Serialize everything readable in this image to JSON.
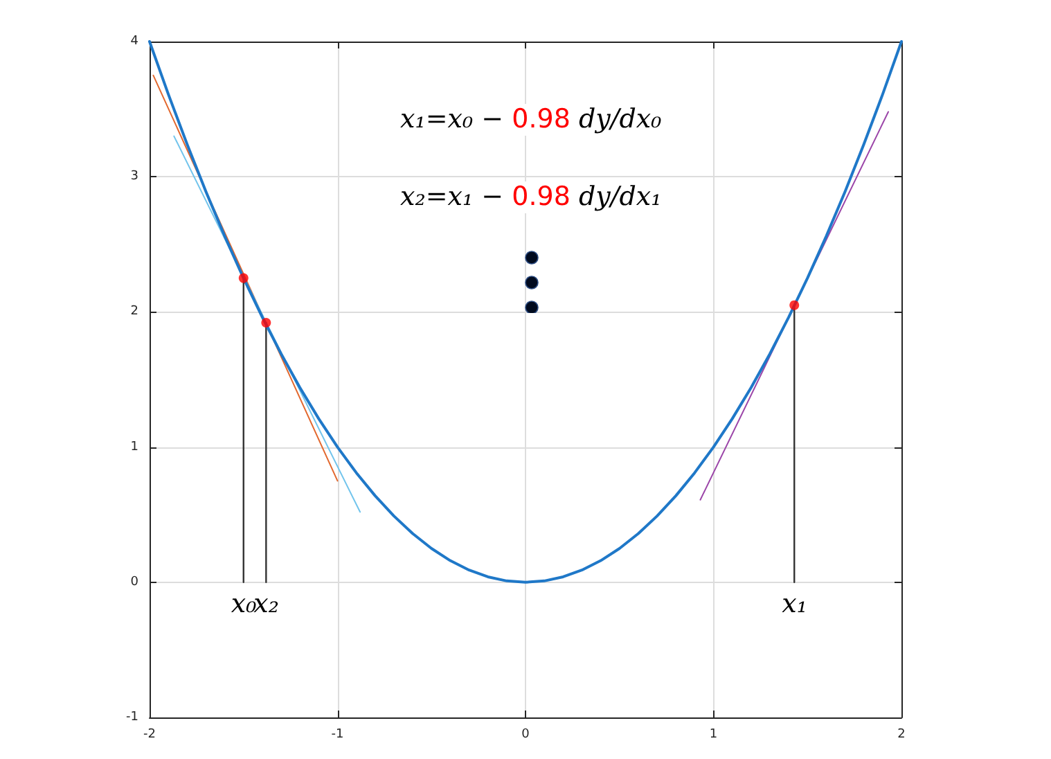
{
  "chart_data": {
    "type": "line",
    "xlim": [
      -2,
      2
    ],
    "xticks": [
      -2,
      -1,
      0,
      1,
      2
    ],
    "ylim": [
      -1,
      4
    ],
    "yticks": [
      -1,
      0,
      1,
      2,
      3,
      4
    ],
    "grid": true,
    "marker": "none",
    "series": [
      {
        "color": "#1f78c8",
        "x": [
          -2,
          -1.9,
          -1.8,
          -1.7,
          -1.6,
          -1.5,
          -1.4,
          -1.3,
          -1.2,
          -1.1,
          -1,
          -0.9,
          -0.8,
          -0.7,
          -0.6,
          -0.5,
          -0.4,
          -0.3,
          -0.2,
          -0.1,
          0,
          0.1,
          0.2,
          0.3,
          0.4,
          0.5,
          0.6,
          0.7,
          0.8,
          0.9,
          1,
          1.1,
          1.2,
          1.3,
          1.4,
          1.5,
          1.6,
          1.7,
          1.8,
          1.9,
          2
        ],
        "values": [
          4,
          3.61,
          3.24,
          2.89,
          2.56,
          2.25,
          1.96,
          1.69,
          1.44,
          1.21,
          1,
          0.81,
          0.64,
          0.49,
          0.36,
          0.25,
          0.16,
          0.09,
          0.04,
          0.01,
          0,
          0.01,
          0.04,
          0.09,
          0.16,
          0.25,
          0.36,
          0.49,
          0.64,
          0.81,
          1,
          1.21,
          1.44,
          1.69,
          1.96,
          2.25,
          2.56,
          2.89,
          3.24,
          3.61,
          4
        ]
      },
      {
        "color": "#e2682e",
        "x": [
          -1.98,
          -1.0
        ],
        "values": [
          3.75,
          0.75
        ]
      },
      {
        "color": "#72c4ec",
        "x": [
          -1.87,
          -0.88
        ],
        "values": [
          3.3,
          0.52
        ]
      },
      {
        "color": "#9b45a8",
        "x": [
          0.93,
          1.93
        ],
        "values": [
          0.61,
          3.48
        ]
      },
      {
        "color": "#333333",
        "x": [
          -1.5,
          -1.5
        ],
        "values": [
          0,
          2.25
        ]
      },
      {
        "color": "#333333",
        "x": [
          -1.38,
          -1.38
        ],
        "values": [
          0,
          1.92
        ]
      },
      {
        "color": "#333333",
        "x": [
          1.43,
          1.43
        ],
        "values": [
          0,
          2.05
        ]
      },
      {
        "type": "scatter",
        "marker": "circle",
        "color": "#ff0000",
        "x": [
          -1.5,
          -1.38,
          1.43
        ],
        "values": [
          2.25,
          1.92,
          2.05
        ]
      }
    ],
    "annotations": [
      "x₁=x₀ − 0.98 dy/dx₀",
      "x₂=x₁ − 0.98 dy/dx₁",
      {
        "text": "x₀",
        "x": -1.5,
        "y": 0
      },
      {
        "text": "x₂",
        "x": -1.38,
        "y": 0
      },
      {
        "text": "x₁",
        "x": 1.43,
        "y": 0
      }
    ]
  }
}
